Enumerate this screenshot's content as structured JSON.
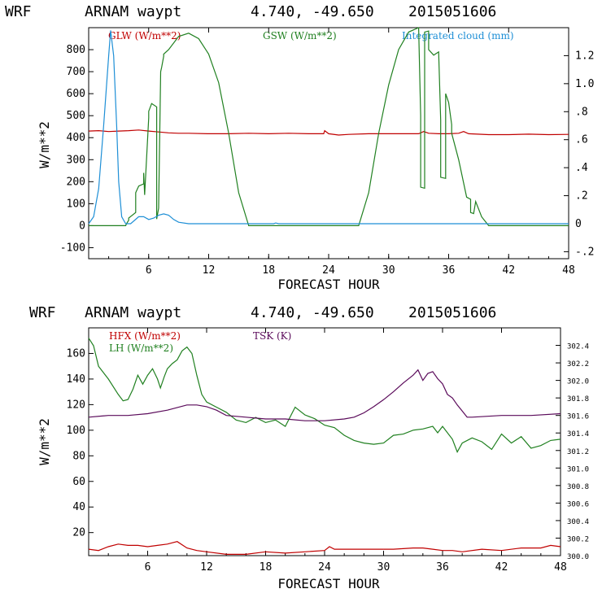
{
  "panels": [
    {
      "header": {
        "model": "WRF",
        "location": "ARNAM waypt",
        "coords": "4.740, -49.650",
        "date": "2015051606"
      },
      "xlabel": "FORECAST HOUR",
      "ylabel": "W/m**2",
      "x_ticks": [
        "6",
        "12",
        "18",
        "24",
        "30",
        "36",
        "42",
        "48"
      ],
      "y_ticks": [
        "-100",
        "0",
        "100",
        "200",
        "300",
        "400",
        "500",
        "600",
        "700",
        "800"
      ],
      "right_ticks": [
        "-.2",
        "0",
        ".2",
        ".4",
        ".6",
        ".8",
        "1.0",
        "1.2"
      ],
      "legend": [
        {
          "label": "GLW (W/m**2)",
          "color": "#c00000"
        },
        {
          "label": "GSW (W/m**2)",
          "color": "#208020"
        },
        {
          "label": "Integrated cloud (mm)",
          "color": "#1e8fd6"
        }
      ]
    },
    {
      "header": {
        "model": "WRF",
        "location": "ARNAM waypt",
        "coords": "4.740, -49.650",
        "date": "2015051606"
      },
      "xlabel": "FORECAST HOUR",
      "ylabel": "W/m**2",
      "x_ticks": [
        "6",
        "12",
        "18",
        "24",
        "30",
        "36",
        "42",
        "48"
      ],
      "y_ticks": [
        "20",
        "40",
        "60",
        "80",
        "100",
        "120",
        "140",
        "160"
      ],
      "right_ticks": [
        "300.0",
        "300.2",
        "300.4",
        "300.6",
        "300.8",
        "301.0",
        "301.2",
        "301.4",
        "301.6",
        "301.8",
        "302.0",
        "302.2",
        "302.4"
      ],
      "legend": [
        {
          "label": "HFX (W/m**2)",
          "color": "#c00000"
        },
        {
          "label": "LH  (W/m**2)",
          "color": "#208020"
        },
        {
          "label": "TSK (K)",
          "color": "#5a0a5a"
        }
      ]
    }
  ],
  "chart_data": [
    {
      "type": "line",
      "xlabel": "FORECAST HOUR",
      "ylabel": "W/m**2",
      "xlim": [
        0,
        48
      ],
      "ylim": [
        -150,
        900
      ],
      "y2lim": [
        -0.25,
        1.4
      ],
      "grid": false,
      "legend_position": "top",
      "series": [
        {
          "name": "GLW (W/m**2)",
          "axis": "left",
          "color": "#c00000",
          "x": [
            0,
            1,
            2,
            3,
            4,
            5,
            6,
            7,
            8,
            9,
            10,
            12,
            14,
            16,
            18,
            20,
            22,
            23.5,
            23.6,
            24,
            25,
            26,
            28,
            30,
            32,
            33,
            33.5,
            34,
            35,
            36,
            37,
            37.5,
            38,
            40,
            42,
            44,
            46,
            48
          ],
          "y": [
            430,
            432,
            428,
            430,
            432,
            435,
            430,
            426,
            422,
            420,
            420,
            418,
            418,
            420,
            418,
            420,
            418,
            418,
            432,
            418,
            412,
            415,
            418,
            418,
            418,
            418,
            428,
            420,
            418,
            418,
            420,
            428,
            418,
            414,
            414,
            416,
            414,
            415
          ]
        },
        {
          "name": "GSW (W/m**2)",
          "axis": "left",
          "color": "#208020",
          "x": [
            0,
            3.7,
            3.8,
            4.0,
            4.0,
            4.7,
            4.7,
            5.0,
            5.5,
            5.5,
            5.6,
            6.0,
            6.0,
            6.3,
            6.8,
            6.8,
            7.0,
            7.2,
            7.3,
            7.5,
            7.5,
            8.0,
            9.0,
            10.0,
            11.0,
            12.0,
            13.0,
            14.0,
            15.0,
            16,
            20,
            24,
            27.0,
            28.0,
            29.0,
            30.0,
            31.0,
            32.0,
            33.0,
            33.2,
            33.2,
            33.6,
            33.6,
            34.0,
            34.0,
            34.5,
            35.0,
            35.2,
            35.2,
            35.7,
            35.7,
            36.0,
            36.3,
            36.3,
            37.0,
            37.8,
            38.2,
            38.2,
            38.5,
            38.7,
            39.3,
            40,
            48
          ],
          "y": [
            0,
            0,
            10,
            25,
            35,
            60,
            150,
            180,
            190,
            240,
            140,
            490,
            520,
            555,
            540,
            30,
            80,
            700,
            720,
            770,
            780,
            800,
            860,
            875,
            850,
            780,
            650,
            420,
            150,
            0,
            0,
            0,
            0,
            150,
            420,
            640,
            800,
            880,
            900,
            500,
            175,
            170,
            880,
            885,
            800,
            775,
            790,
            480,
            220,
            215,
            600,
            560,
            460,
            420,
            300,
            130,
            120,
            60,
            55,
            110,
            40,
            0,
            0
          ]
        },
        {
          "name": "Integrated cloud (mm)",
          "axis": "right",
          "color": "#1e8fd6",
          "x": [
            0,
            0.5,
            1.0,
            1.5,
            2.0,
            2.2,
            2.5,
            2.8,
            3.0,
            3.3,
            3.7,
            4.2,
            5.0,
            5.5,
            6.0,
            6.5,
            7.0,
            7.5,
            8.0,
            8.5,
            9.0,
            10,
            15,
            18.5,
            18.7,
            19,
            20,
            24,
            48
          ],
          "y": [
            0,
            0.05,
            0.25,
            0.7,
            1.2,
            1.38,
            1.2,
            0.7,
            0.3,
            0.05,
            0,
            0,
            0.05,
            0.05,
            0.03,
            0.04,
            0.06,
            0.07,
            0.06,
            0.03,
            0.01,
            0,
            0,
            0,
            0.005,
            0,
            0,
            0,
            0
          ]
        }
      ]
    },
    {
      "type": "line",
      "xlabel": "FORECAST HOUR",
      "ylabel": "W/m**2",
      "xlim": [
        0,
        48
      ],
      "ylim": [
        2,
        180
      ],
      "y2lim": [
        300.0,
        302.6
      ],
      "grid": false,
      "legend_position": "top",
      "series": [
        {
          "name": "HFX (W/m**2)",
          "axis": "left",
          "color": "#c00000",
          "x": [
            0,
            1,
            2,
            3,
            4,
            5,
            6,
            7,
            8,
            9,
            10,
            11,
            12,
            14,
            16,
            18,
            20,
            22,
            24,
            24.5,
            25,
            27,
            29,
            31,
            33,
            34,
            35,
            36,
            37,
            38,
            40,
            42,
            44,
            46,
            47,
            48
          ],
          "y": [
            7,
            6,
            9,
            11,
            10,
            10,
            9,
            10,
            11,
            13,
            8,
            6,
            5,
            3,
            3,
            5,
            4,
            5,
            6,
            9,
            7,
            7,
            7,
            7,
            8,
            8,
            7,
            6,
            6,
            5,
            7,
            6,
            8,
            8,
            10,
            9
          ]
        },
        {
          "name": "LH  (W/m**2)",
          "axis": "left",
          "color": "#208020",
          "x": [
            0,
            0.5,
            1.0,
            2.0,
            3.0,
            3.5,
            4.0,
            4.5,
            5.0,
            5.5,
            6.0,
            6.5,
            7.0,
            7.3,
            7.7,
            8.0,
            8.5,
            9.0,
            9.5,
            10.0,
            10.5,
            11.0,
            11.5,
            12.0,
            13.0,
            14.0,
            15.0,
            16.0,
            17.0,
            18.0,
            19.0,
            20.0,
            21.0,
            22.0,
            23.0,
            24.0,
            25.0,
            26.0,
            27.0,
            28.0,
            29.0,
            30.0,
            31.0,
            32.0,
            33.0,
            34.0,
            35.0,
            35.5,
            36.0,
            37.0,
            37.5,
            38.0,
            39.0,
            40.0,
            41.0,
            42.0,
            43.0,
            44.0,
            45.0,
            46.0,
            47.0,
            48.0
          ],
          "y": [
            172,
            166,
            150,
            140,
            128,
            123,
            124,
            132,
            143,
            136,
            143,
            148,
            140,
            133,
            142,
            148,
            152,
            155,
            162,
            165,
            160,
            143,
            128,
            122,
            118,
            114,
            108,
            106,
            110,
            106,
            108,
            103,
            118,
            112,
            109,
            104,
            102,
            96,
            92,
            90,
            89,
            90,
            96,
            97,
            100,
            101,
            103,
            98,
            103,
            93,
            83,
            90,
            94,
            91,
            85,
            97,
            90,
            95,
            86,
            88,
            92,
            93
          ]
        },
        {
          "name": "TSK (K)",
          "axis": "right",
          "color": "#5a0a5a",
          "x": [
            0,
            2,
            4,
            6,
            8,
            10,
            11,
            12,
            13,
            14,
            16,
            18,
            20,
            22,
            24,
            26,
            27,
            28,
            29,
            30,
            31,
            32,
            33,
            33.5,
            34.0,
            34.5,
            35.0,
            35.5,
            36.0,
            36.5,
            37.0,
            37.5,
            38.0,
            38.5,
            39,
            42,
            45,
            48
          ],
          "y": [
            301.58,
            301.6,
            301.6,
            301.62,
            301.66,
            301.72,
            301.72,
            301.7,
            301.66,
            301.6,
            301.58,
            301.56,
            301.56,
            301.54,
            301.54,
            301.56,
            301.58,
            301.63,
            301.7,
            301.78,
            301.87,
            301.97,
            302.06,
            302.12,
            302.0,
            302.08,
            302.1,
            302.02,
            301.96,
            301.84,
            301.8,
            301.72,
            301.65,
            301.58,
            301.58,
            301.6,
            301.6,
            301.62
          ]
        }
      ]
    }
  ]
}
